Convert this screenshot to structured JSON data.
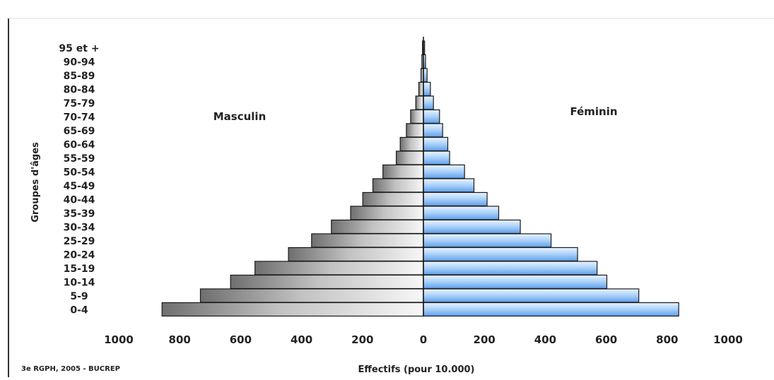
{
  "chart_data": {
    "type": "bar",
    "subtype": "population-pyramid",
    "orientation": "horizontal",
    "categories": [
      "0-4",
      "5-9",
      "10-14",
      "15-19",
      "20-24",
      "25-29",
      "30-34",
      "35-39",
      "40-44",
      "45-49",
      "50-54",
      "55-59",
      "60-64",
      "65-69",
      "70-74",
      "75-79",
      "80-84",
      "85-89",
      "90-94",
      "95 et +"
    ],
    "series": [
      {
        "name": "Masculin",
        "values": [
          858,
          732,
          633,
          553,
          443,
          367,
          302,
          239,
          199,
          166,
          133,
          89,
          76,
          56,
          42,
          25,
          15,
          8,
          5,
          3
        ]
      },
      {
        "name": "Féminin",
        "values": [
          838,
          707,
          602,
          570,
          506,
          419,
          318,
          247,
          209,
          166,
          135,
          86,
          80,
          63,
          53,
          33,
          23,
          12,
          7,
          4
        ]
      }
    ],
    "xlabel": "Effectifs  (pour 10.000)",
    "ylabel": "Groupes d'âges",
    "xlim": [
      -1000,
      1000
    ],
    "xticks": [
      -1000,
      -800,
      -600,
      -400,
      -200,
      0,
      200,
      400,
      600,
      800,
      1000
    ],
    "xtick_labels": [
      "1000",
      "800",
      "600",
      "400",
      "200",
      "0",
      "200",
      "400",
      "600",
      "800",
      "1000"
    ],
    "grid": false,
    "colors": {
      "male": "#888888",
      "female": "#6aaaf0",
      "bar_edge": "#1a1a1a"
    },
    "annotations": {
      "male_label": "Masculin",
      "female_label": "Féminin"
    },
    "source_note": "3e RGPH, 2005 - BUCREP"
  }
}
